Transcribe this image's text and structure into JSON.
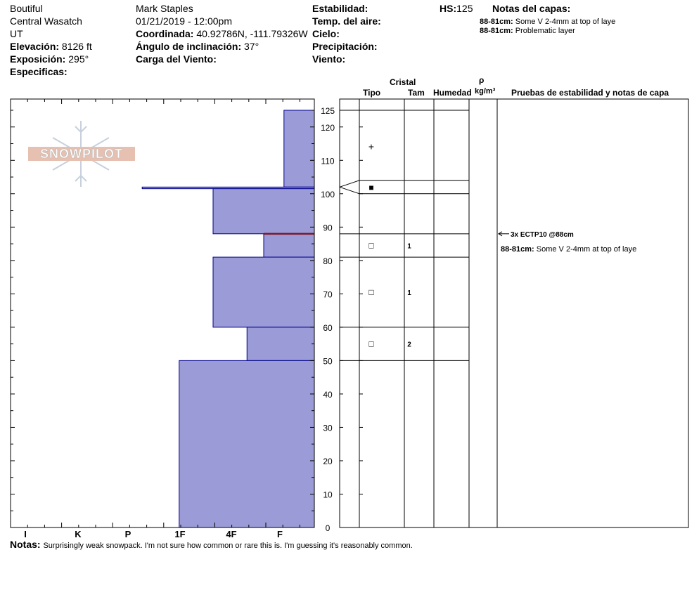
{
  "header": {
    "location": "Boutiful",
    "range": "Central Wasatch",
    "state": "UT",
    "elevation_label": "Elevación:",
    "elevation_value": "8126 ft",
    "aspect_label": "Exposición:",
    "aspect_value": "295°",
    "specifics_label": "Especificas:",
    "observer": "Mark Staples",
    "datetime": "01/21/2019 - 12:00pm",
    "coord_label": "Coordinada:",
    "coord_value": "40.92786N, -111.79326W",
    "slope_label": "Ángulo de inclinación:",
    "slope_value": "37°",
    "wind_load_label": "Carga del Viento:",
    "stability_label": "Estabilidad:",
    "air_temp_label": "Temp. del aire:",
    "sky_label": "Cielo:",
    "precip_label": "Precipitación:",
    "wind_label": "Viento:",
    "hs_label": "HS:",
    "hs_value": "125",
    "layer_notes_title": "Notas del capas:",
    "layer_notes": [
      {
        "range": "88-81cm:",
        "text": "Some V 2-4mm at top of laye"
      },
      {
        "range": "88-81cm:",
        "text": "Problematic layer"
      }
    ]
  },
  "columns": {
    "crystal": "Cristal",
    "type": "Tipo",
    "size": "Tam",
    "moisture": "Humedad",
    "rho": "ρ",
    "density_unit": "kg/m³",
    "tests_title": "Pruebas de estabilidad y notas de capa"
  },
  "logo_text": "SNOWPILOT",
  "colors": {
    "fill": "#9b9bd7",
    "edge": "#00008b",
    "marker": "#7b1a2a"
  },
  "chart_data": {
    "type": "bar",
    "orientation": "horizontal",
    "y_axis": {
      "min": 0,
      "max": 125,
      "ticks": [
        0,
        10,
        20,
        30,
        40,
        50,
        60,
        70,
        80,
        90,
        100,
        110,
        120,
        125
      ]
    },
    "hardness_scale": [
      "I",
      "K",
      "P",
      "1F",
      "4F",
      "F"
    ],
    "layers": [
      {
        "bottom": 102,
        "top": 125,
        "hardness": 0.6
      },
      {
        "bottom": 101.5,
        "top": 102,
        "hardness": 3.4
      },
      {
        "bottom": 88,
        "top": 101.5,
        "hardness": 2.0
      },
      {
        "bottom": 81,
        "top": 88,
        "hardness": 1.0
      },
      {
        "bottom": 60,
        "top": 81,
        "hardness": 2.0
      },
      {
        "bottom": 50,
        "top": 60,
        "hardness": 1.33
      },
      {
        "bottom": 0,
        "top": 50,
        "hardness": 2.67
      }
    ],
    "test_marker_depth": 88,
    "layer_boundaries": [
      125,
      104,
      100,
      88,
      81,
      60,
      50
    ],
    "grain_rows": [
      {
        "depth": 114,
        "symbol": "+",
        "size": ""
      },
      {
        "depth": 101.8,
        "symbol": "■",
        "size": ""
      },
      {
        "depth": 84.5,
        "symbol": "□",
        "size": "1"
      },
      {
        "depth": 70.5,
        "symbol": "□",
        "size": "1"
      },
      {
        "depth": 55,
        "symbol": "□",
        "size": "2"
      }
    ],
    "stability_tests": [
      {
        "depth": 88,
        "label": "3x ECTP10 @88cm"
      }
    ],
    "layer_note": {
      "range": "88-81cm:",
      "text": "Some V 2-4mm at top of laye"
    }
  },
  "notes_label": "Notas:",
  "notes_text": "Surprisingly weak snowpack. I'm not sure how common or rare this is. I'm guessing it's reasonably common."
}
